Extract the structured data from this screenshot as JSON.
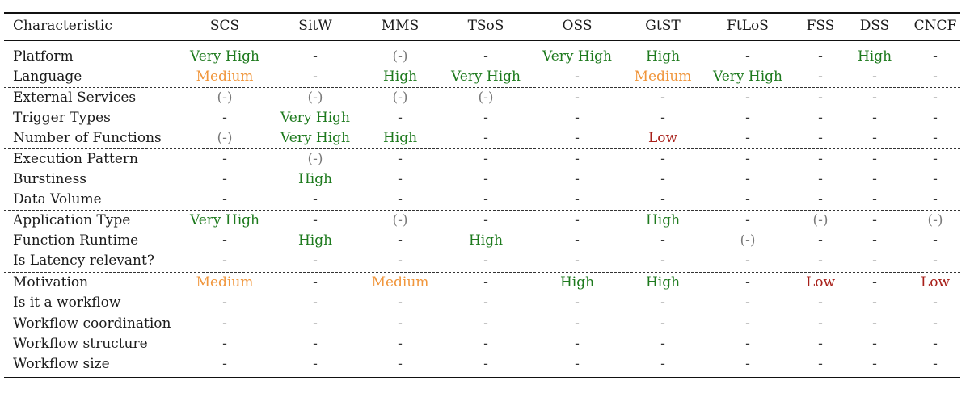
{
  "table": {
    "columns": [
      "Characteristic",
      "SCS",
      "SitW",
      "MMS",
      "TSoS",
      "OSS",
      "GtST",
      "FtLoS",
      "FSS",
      "DSS",
      "CNCF"
    ],
    "rows": [
      {
        "label": "Platform",
        "values": [
          "Very High",
          "-",
          "(-)",
          "-",
          "Very High",
          "High",
          "-",
          "-",
          "High",
          "-"
        ]
      },
      {
        "label": "Language",
        "values": [
          "Medium",
          "-",
          "High",
          "Very High",
          "-",
          "Medium",
          "Very High",
          "-",
          "-",
          "-"
        ]
      },
      {
        "label": "External Services",
        "values": [
          "(-)",
          "(-)",
          "(-)",
          "(-)",
          "-",
          "-",
          "-",
          "-",
          "-",
          "-"
        ]
      },
      {
        "label": "Trigger Types",
        "values": [
          "-",
          "Very High",
          "-",
          "-",
          "-",
          "-",
          "-",
          "-",
          "-",
          "-"
        ]
      },
      {
        "label": "Number of Functions",
        "values": [
          "(-)",
          "Very High",
          "High",
          "-",
          "-",
          "Low",
          "-",
          "-",
          "-",
          "-"
        ]
      },
      {
        "label": "Execution Pattern",
        "values": [
          "-",
          "(-)",
          "-",
          "-",
          "-",
          "-",
          "-",
          "-",
          "-",
          "-"
        ]
      },
      {
        "label": "Burstiness",
        "values": [
          "-",
          "High",
          "-",
          "-",
          "-",
          "-",
          "-",
          "-",
          "-",
          "-"
        ]
      },
      {
        "label": "Data Volume",
        "values": [
          "-",
          "-",
          "-",
          "-",
          "-",
          "-",
          "-",
          "-",
          "-",
          "-"
        ]
      },
      {
        "label": "Application Type",
        "values": [
          "Very High",
          "-",
          "(-)",
          "-",
          "-",
          "High",
          "-",
          "(-)",
          "-",
          "(-)"
        ]
      },
      {
        "label": "Function Runtime",
        "values": [
          "-",
          "High",
          "-",
          "High",
          "-",
          "-",
          "(-)",
          "-",
          "-",
          "-"
        ]
      },
      {
        "label": "Is Latency relevant?",
        "values": [
          "-",
          "-",
          "-",
          "-",
          "-",
          "-",
          "-",
          "-",
          "-",
          "-"
        ]
      },
      {
        "label": "Motivation",
        "values": [
          "Medium",
          "-",
          "Medium",
          "-",
          "High",
          "High",
          "-",
          "Low",
          "-",
          "Low"
        ]
      },
      {
        "label": "Is it a workflow",
        "values": [
          "-",
          "-",
          "-",
          "-",
          "-",
          "-",
          "-",
          "-",
          "-",
          "-"
        ]
      },
      {
        "label": "Workflow coordination",
        "values": [
          "-",
          "-",
          "-",
          "-",
          "-",
          "-",
          "-",
          "-",
          "-",
          "-"
        ]
      },
      {
        "label": "Workflow structure",
        "values": [
          "-",
          "-",
          "-",
          "-",
          "-",
          "-",
          "-",
          "-",
          "-",
          "-"
        ]
      },
      {
        "label": "Workflow size",
        "values": [
          "-",
          "-",
          "-",
          "-",
          "-",
          "-",
          "-",
          "-",
          "-",
          "-"
        ]
      }
    ]
  },
  "colors": {
    "very_high": "#1e7a1e",
    "high": "#1e7a1e",
    "medium": "#f0963c",
    "low": "#a8201a",
    "unknown": "#7a7a7a",
    "none": "#333333"
  }
}
